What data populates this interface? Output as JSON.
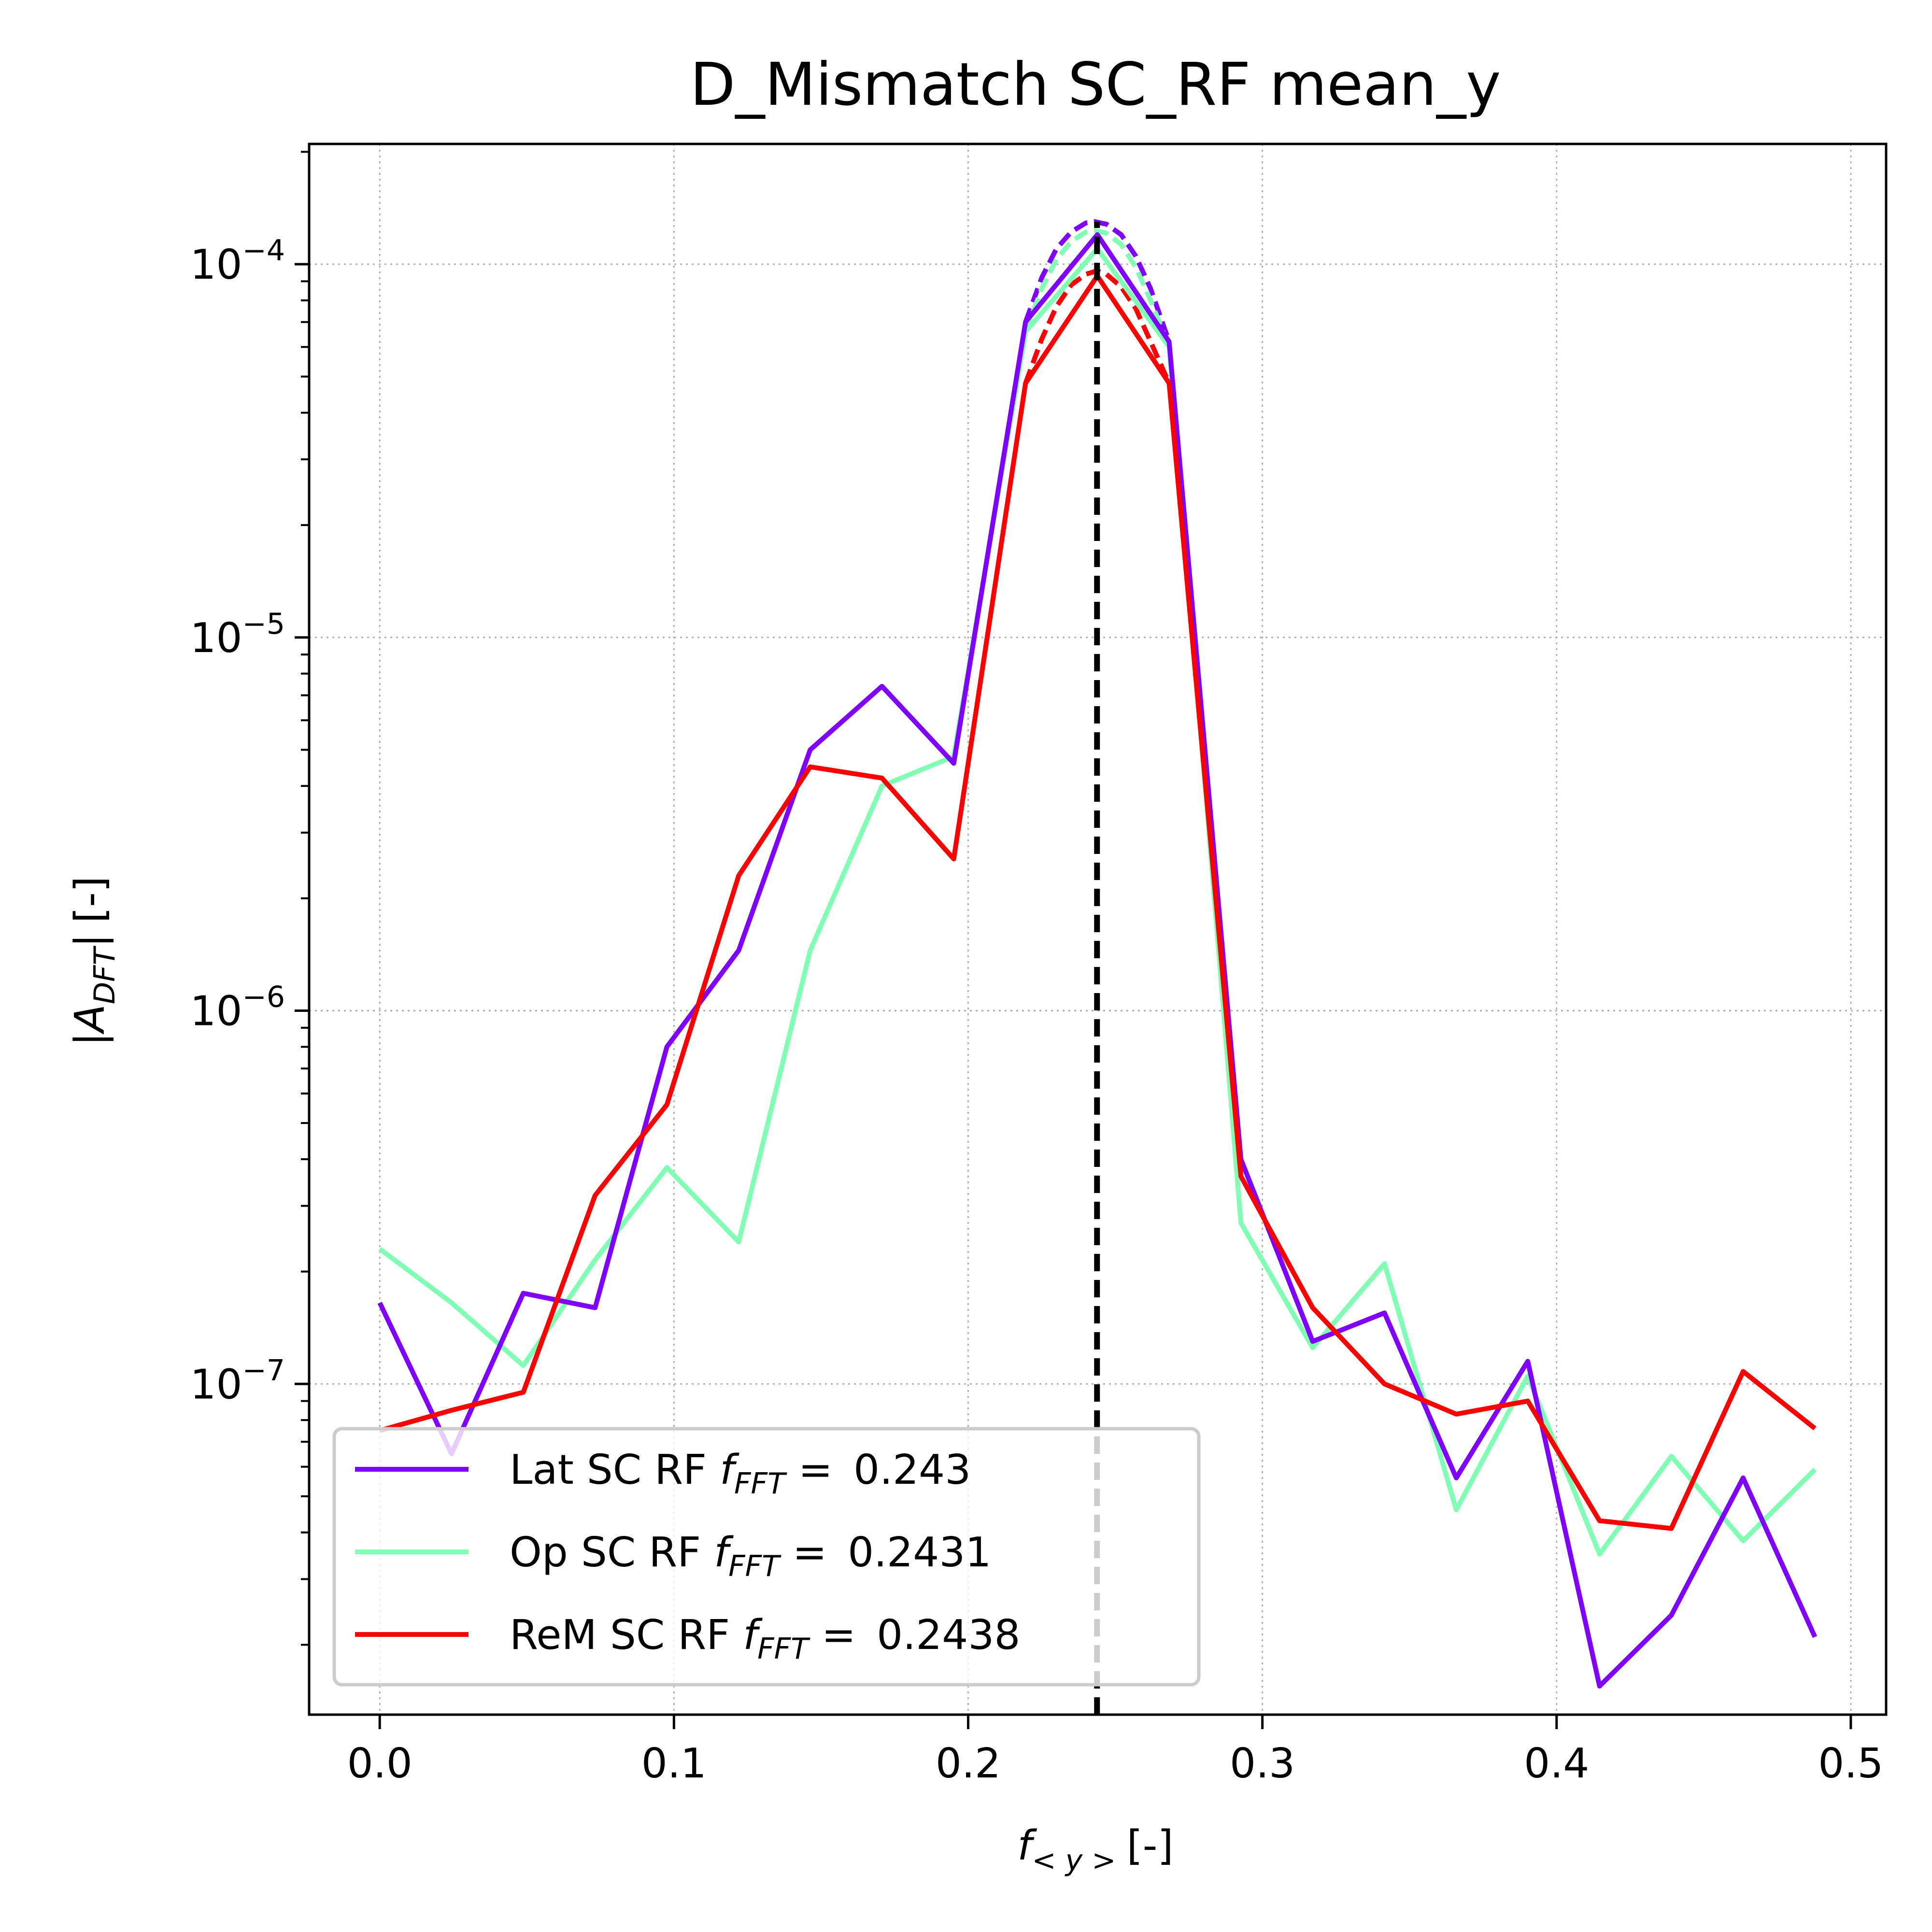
{
  "chart_data": {
    "type": "line",
    "title": "D_Mismatch SC_RF mean_y",
    "xlabel": {
      "symbol": "f",
      "subscript": "< y >",
      "unit": "[-]"
    },
    "ylabel": {
      "symbol": "|A",
      "subscript": "DFT",
      "close": "|",
      "unit": "[-]"
    },
    "xlim": [
      -0.024,
      0.512
    ],
    "ylim": [
      1.3e-08,
      0.00021
    ],
    "yscale": "log",
    "grid": true,
    "legend_position": "lower-left",
    "x_ticks": [
      {
        "value": 0.0,
        "label": "0.0"
      },
      {
        "value": 0.1,
        "label": "0.1"
      },
      {
        "value": 0.2,
        "label": "0.2"
      },
      {
        "value": 0.3,
        "label": "0.3"
      },
      {
        "value": 0.4,
        "label": "0.4"
      },
      {
        "value": 0.5,
        "label": "0.5"
      }
    ],
    "y_ticks": [
      {
        "value": 0.0001,
        "base": "10",
        "exp": "−4"
      },
      {
        "value": 1e-05,
        "base": "10",
        "exp": "−5"
      },
      {
        "value": 1e-06,
        "base": "10",
        "exp": "−6"
      },
      {
        "value": 1e-07,
        "base": "10",
        "exp": "−7"
      }
    ],
    "x": [
      0.0,
      0.0244,
      0.0488,
      0.0732,
      0.0976,
      0.122,
      0.1463,
      0.1707,
      0.1951,
      0.2195,
      0.2439,
      0.2683,
      0.2927,
      0.3171,
      0.3415,
      0.3659,
      0.3902,
      0.4146,
      0.439,
      0.4634,
      0.4878
    ],
    "series": [
      {
        "name": "Lat SC RF",
        "fft_label": "f",
        "fft_sub": "FFT",
        "fft_value": "0.243",
        "color": "#8000ff",
        "values": [
          1.65e-07,
          6.5e-08,
          1.75e-07,
          1.6e-07,
          8e-07,
          1.45e-06,
          5e-06,
          7.4e-06,
          4.6e-06,
          7e-05,
          0.00012,
          6.2e-05,
          4e-07,
          1.3e-07,
          1.55e-07,
          5.6e-08,
          1.15e-07,
          1.55e-08,
          2.4e-08,
          5.6e-08,
          2.1e-08
        ]
      },
      {
        "name": "Op SC RF",
        "fft_label": "f",
        "fft_sub": "FFT",
        "fft_value": "0.2431",
        "color": "#80ffb4",
        "values": [
          2.3e-07,
          1.65e-07,
          1.12e-07,
          2.15e-07,
          3.8e-07,
          2.4e-07,
          1.45e-06,
          4e-06,
          4.8e-06,
          6.6e-05,
          0.00011,
          6e-05,
          2.7e-07,
          1.25e-07,
          2.1e-07,
          4.6e-08,
          1.05e-07,
          3.5e-08,
          6.4e-08,
          3.8e-08,
          5.9e-08
        ]
      },
      {
        "name": "ReM SC RF",
        "fft_label": "f",
        "fft_sub": "FFT",
        "fft_value": "0.2438",
        "color": "#ff0000",
        "values": [
          7.5e-08,
          8.5e-08,
          9.5e-08,
          3.2e-07,
          5.6e-07,
          2.3e-06,
          4.5e-06,
          4.2e-06,
          2.55e-06,
          4.8e-05,
          9.3e-05,
          4.8e-05,
          3.6e-07,
          1.6e-07,
          1e-07,
          8.3e-08,
          9e-08,
          4.3e-08,
          4.1e-08,
          1.08e-07,
          7.6e-08
        ]
      }
    ],
    "interpolated_peaks": [
      {
        "series": "Lat SC RF",
        "x": [
          0.2195,
          0.225,
          0.23,
          0.235,
          0.24,
          0.2431,
          0.247,
          0.252,
          0.257,
          0.262,
          0.2683
        ],
        "values": [
          7e-05,
          9.2e-05,
          0.00011,
          0.000122,
          0.000129,
          0.00013,
          0.000128,
          0.00012,
          0.000105,
          8.6e-05,
          6.2e-05
        ]
      },
      {
        "series": "Op SC RF",
        "x": [
          0.2195,
          0.225,
          0.23,
          0.235,
          0.24,
          0.2431,
          0.247,
          0.252,
          0.257,
          0.262,
          0.2683
        ],
        "values": [
          6.6e-05,
          8.6e-05,
          0.000103,
          0.000115,
          0.000122,
          0.000123,
          0.000121,
          0.000113,
          9.8e-05,
          8e-05,
          6e-05
        ]
      },
      {
        "series": "ReM SC RF",
        "x": [
          0.2195,
          0.225,
          0.23,
          0.235,
          0.24,
          0.2438,
          0.247,
          0.252,
          0.257,
          0.262,
          0.2683
        ],
        "values": [
          4.8e-05,
          6.3e-05,
          7.7e-05,
          8.8e-05,
          9.4e-05,
          9.6e-05,
          9.4e-05,
          8.7e-05,
          7.6e-05,
          6.2e-05,
          4.8e-05
        ]
      }
    ],
    "vline": {
      "x": 0.2438,
      "color": "#000000"
    }
  }
}
